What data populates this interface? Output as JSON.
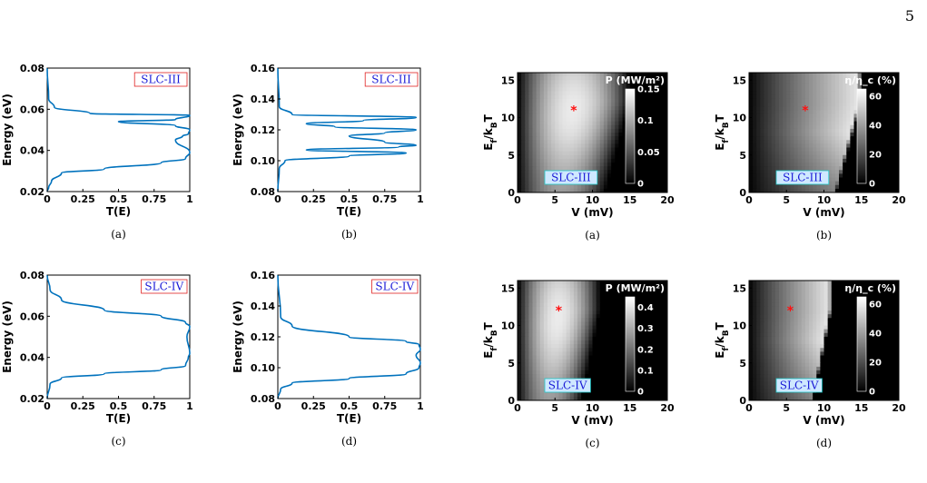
{
  "page_number": "5",
  "colors": {
    "curve": "#0072BD",
    "marker": "#ff1010",
    "tag_text": "#1a1ad6",
    "tag_border_line": "#e02020",
    "tag_border_map": "#20c8c8"
  },
  "chart_data": [
    {
      "type": "line",
      "panel": "transmission",
      "caption": "(a)",
      "tag": "SLC-III",
      "xlabel": "T(E)",
      "ylabel": "Energy (eV)",
      "xlim": [
        0,
        1
      ],
      "ylim": [
        0.02,
        0.08
      ],
      "xticks": [
        "0",
        "0.25",
        "0.5",
        "0.75",
        "1"
      ],
      "yticks": [
        "0.02",
        "0.04",
        "0.06",
        "0.08"
      ],
      "x": [
        0,
        0.01,
        0.03,
        0.1,
        0.4,
        0.8,
        0.97,
        1,
        0.9,
        0.95,
        0.99,
        1,
        0.9,
        0.5,
        0.9,
        1,
        0.3,
        0.05,
        0.01,
        0
      ],
      "y": [
        0.02,
        0.022,
        0.025,
        0.029,
        0.031,
        0.034,
        0.036,
        0.039,
        0.045,
        0.047,
        0.048,
        0.05,
        0.052,
        0.054,
        0.055,
        0.057,
        0.058,
        0.061,
        0.065,
        0.08
      ]
    },
    {
      "type": "line",
      "panel": "transmission",
      "caption": "(b)",
      "tag": "SLC-III",
      "xlabel": "T(E)",
      "ylabel": "Energy (eV)",
      "xlim": [
        0,
        1
      ],
      "ylim": [
        0.08,
        0.16
      ],
      "xticks": [
        "0",
        "0.25",
        "0.5",
        "0.75",
        "1"
      ],
      "yticks": [
        "0.08",
        "0.10",
        "0.12",
        "0.14",
        "0.16"
      ],
      "x": [
        0,
        0.01,
        0.05,
        0.5,
        0.9,
        0.2,
        0.85,
        0.97,
        0.75,
        0.5,
        0.75,
        0.97,
        0.4,
        0.2,
        0.6,
        0.97,
        0.1,
        0.01,
        0
      ],
      "y": [
        0.08,
        0.095,
        0.1,
        0.103,
        0.105,
        0.107,
        0.109,
        0.11,
        0.112,
        0.116,
        0.118,
        0.12,
        0.122,
        0.124,
        0.126,
        0.128,
        0.13,
        0.135,
        0.16
      ]
    },
    {
      "type": "line",
      "panel": "transmission",
      "caption": "(c)",
      "tag": "SLC-IV",
      "xlabel": "T(E)",
      "ylabel": "Energy (eV)",
      "xlim": [
        0,
        1
      ],
      "ylim": [
        0.02,
        0.08
      ],
      "xticks": [
        "0",
        "0.25",
        "0.5",
        "0.75",
        "1"
      ],
      "yticks": [
        "0.02",
        "0.04",
        "0.06",
        "0.08"
      ],
      "x": [
        0,
        0.02,
        0.1,
        0.4,
        0.8,
        0.97,
        0.99,
        1,
        0.98,
        1,
        0.97,
        0.8,
        0.4,
        0.1,
        0.02,
        0
      ],
      "y": [
        0.02,
        0.027,
        0.03,
        0.032,
        0.034,
        0.036,
        0.04,
        0.042,
        0.05,
        0.055,
        0.057,
        0.06,
        0.063,
        0.068,
        0.073,
        0.08
      ]
    },
    {
      "type": "line",
      "panel": "transmission",
      "caption": "(d)",
      "tag": "SLC-IV",
      "xlabel": "T(E)",
      "ylabel": "Energy (eV)",
      "xlim": [
        0,
        1
      ],
      "ylim": [
        0.08,
        0.16
      ],
      "xticks": [
        "0",
        "0.25",
        "0.5",
        "0.75",
        "1"
      ],
      "yticks": [
        "0.08",
        "0.10",
        "0.12",
        "0.14",
        "0.16"
      ],
      "x": [
        0,
        0.02,
        0.1,
        0.5,
        0.9,
        0.99,
        1,
        0.97,
        1,
        0.99,
        0.9,
        0.5,
        0.1,
        0.02,
        0
      ],
      "y": [
        0.08,
        0.086,
        0.09,
        0.093,
        0.096,
        0.1,
        0.103,
        0.108,
        0.112,
        0.115,
        0.117,
        0.12,
        0.127,
        0.133,
        0.16
      ]
    },
    {
      "type": "heatmap",
      "panel": "power",
      "caption": "(a)",
      "tag": "SLC-III",
      "xlabel": "V (mV)",
      "ylabel": "E_f/k_B T",
      "colorbar_title": "P (MW/m²)",
      "xlim": [
        0,
        20
      ],
      "ylim": [
        0,
        16
      ],
      "xticks": [
        "0",
        "5",
        "10",
        "15",
        "20"
      ],
      "yticks": [
        "0",
        "5",
        "10",
        "15"
      ],
      "cticks": [
        "0",
        "0.05",
        "0.1",
        "0.15"
      ],
      "clim": [
        0,
        0.15
      ],
      "peak_shape": "power",
      "zero_boundary_v": 15,
      "peak_v": 7.5,
      "marker": {
        "x": 7.5,
        "y": 11
      }
    },
    {
      "type": "heatmap",
      "panel": "efficiency",
      "caption": "(b)",
      "tag": "SLC-III",
      "xlabel": "V (mV)",
      "ylabel": "E_f/k_B T",
      "colorbar_title": "η/η_c (%)",
      "xlim": [
        0,
        20
      ],
      "ylim": [
        0,
        16
      ],
      "xticks": [
        "0",
        "5",
        "10",
        "15",
        "20"
      ],
      "yticks": [
        "0",
        "5",
        "10",
        "15"
      ],
      "cticks": [
        "0",
        "20",
        "40",
        "60"
      ],
      "clim": [
        0,
        65
      ],
      "peak_shape": "efficiency",
      "zero_boundary_v": 15,
      "peak_v": 12,
      "marker": {
        "x": 7.5,
        "y": 11
      }
    },
    {
      "type": "heatmap",
      "panel": "power",
      "caption": "(c)",
      "tag": "SLC-IV",
      "xlabel": "V (mV)",
      "ylabel": "E_f/k_B T",
      "colorbar_title": "P (MW/m²)",
      "xlim": [
        0,
        20
      ],
      "ylim": [
        0,
        16
      ],
      "xticks": [
        "0",
        "5",
        "10",
        "15",
        "20"
      ],
      "yticks": [
        "0",
        "5",
        "10",
        "15"
      ],
      "cticks": [
        "0",
        "0.1",
        "0.2",
        "0.3",
        "0.4"
      ],
      "clim": [
        0,
        0.45
      ],
      "peak_shape": "power",
      "zero_boundary_v": 11,
      "peak_v": 5.5,
      "marker": {
        "x": 5.5,
        "y": 12
      }
    },
    {
      "type": "heatmap",
      "panel": "efficiency",
      "caption": "(d)",
      "tag": "SLC-IV",
      "xlabel": "V (mV)",
      "ylabel": "E_f/k_B T",
      "colorbar_title": "η/η_c (%)",
      "xlim": [
        0,
        20
      ],
      "ylim": [
        0,
        16
      ],
      "xticks": [
        "0",
        "5",
        "10",
        "15",
        "20"
      ],
      "yticks": [
        "0",
        "5",
        "10",
        "15"
      ],
      "cticks": [
        "0",
        "20",
        "40",
        "60"
      ],
      "clim": [
        0,
        65
      ],
      "peak_shape": "efficiency",
      "zero_boundary_v": 11,
      "peak_v": 9,
      "marker": {
        "x": 5.5,
        "y": 12
      }
    }
  ]
}
